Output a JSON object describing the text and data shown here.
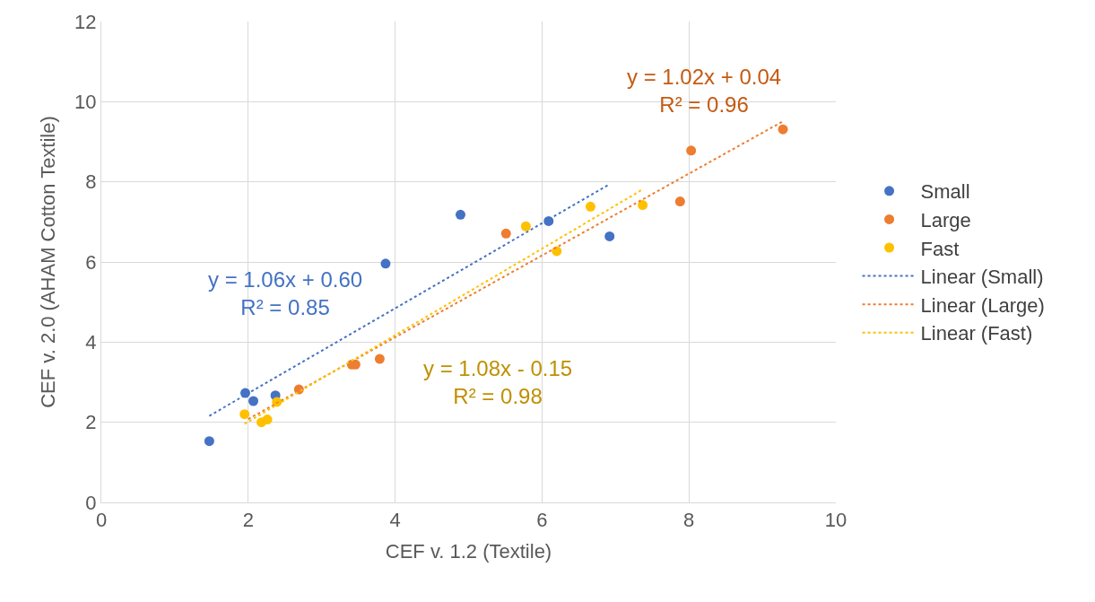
{
  "chart_data": {
    "type": "scatter",
    "xlabel": "CEF v. 1.2 (Textile)",
    "ylabel": "CEF v. 2.0 (AHAM Cotton Textile)",
    "xlim": [
      0,
      10
    ],
    "xticks": [
      0,
      2,
      4,
      6,
      8,
      10
    ],
    "ylim": [
      0,
      12
    ],
    "yticks": [
      0,
      2,
      4,
      6,
      8,
      10,
      12
    ],
    "grid": true,
    "legend": "right",
    "marker": "circle",
    "series": [
      {
        "name": "Small",
        "color": "#4472c4",
        "x": [
          1.47,
          1.96,
          2.07,
          2.37,
          3.87,
          4.89,
          6.09,
          6.92
        ],
        "values": [
          1.53,
          2.73,
          2.53,
          2.67,
          5.96,
          7.18,
          7.02,
          6.64
        ]
      },
      {
        "name": "Large",
        "color": "#ed7d31",
        "x": [
          2.69,
          3.41,
          3.46,
          3.79,
          5.51,
          7.88,
          8.03,
          9.28
        ],
        "values": [
          2.82,
          3.44,
          3.44,
          3.58,
          6.71,
          7.51,
          8.78,
          9.31
        ]
      },
      {
        "name": "Fast",
        "color": "#ffc000",
        "x": [
          1.95,
          2.18,
          2.26,
          2.39,
          5.78,
          6.2,
          6.66,
          7.37
        ],
        "values": [
          2.2,
          2.0,
          2.07,
          2.51,
          6.89,
          6.27,
          7.38,
          7.42
        ]
      },
      {
        "name": "Linear (Small)",
        "type": "line",
        "marker": "none",
        "line_style": "dotted",
        "color": "#4472c4",
        "x": [
          1.47,
          6.92
        ],
        "values": [
          2.16,
          7.94
        ]
      },
      {
        "name": "Linear (Large)",
        "type": "line",
        "marker": "none",
        "line_style": "dotted",
        "color": "#ed7d31",
        "x": [
          2.0,
          9.28
        ],
        "values": [
          2.08,
          9.51
        ]
      },
      {
        "name": "Linear (Fast)",
        "type": "line",
        "marker": "none",
        "line_style": "dotted",
        "color": "#ffc000",
        "x": [
          1.95,
          7.37
        ],
        "values": [
          1.96,
          7.81
        ]
      }
    ],
    "annotations": [
      "y = 1.06x + 0.60\nR² = 0.85",
      "y = 1.02x + 0.04\nR² = 0.96",
      "y = 1.08x - 0.15\nR² = 0.98"
    ]
  }
}
